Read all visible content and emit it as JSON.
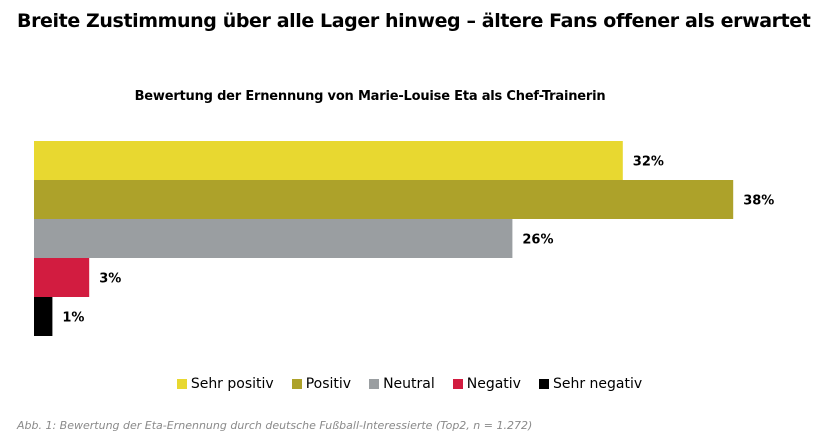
{
  "headline": "Breite Zustimmung über alle Lager hinweg – ältere Fans offener als erwartet",
  "caption": "Abb. 1: Bewertung der Eta-Ernennung durch deutsche Fußball-Interessierte (Top2, n = 1.272)",
  "chart_data": {
    "type": "bar",
    "orientation": "horizontal",
    "title": "Bewertung der Ernennung von Marie-Louise Eta als Chef-Trainerin",
    "categories": [
      "Sehr positiv",
      "Positiv",
      "Neutral",
      "Negativ",
      "Sehr negativ"
    ],
    "values": [
      32,
      38,
      26,
      3,
      1
    ],
    "data_labels": [
      "32%",
      "38%",
      "26%",
      "3%",
      "1%"
    ],
    "colors": [
      "#e8d830",
      "#ada22a",
      "#9a9ea1",
      "#d21c40",
      "#000000"
    ],
    "unit": "%",
    "grid": false,
    "legend_position": "bottom"
  }
}
